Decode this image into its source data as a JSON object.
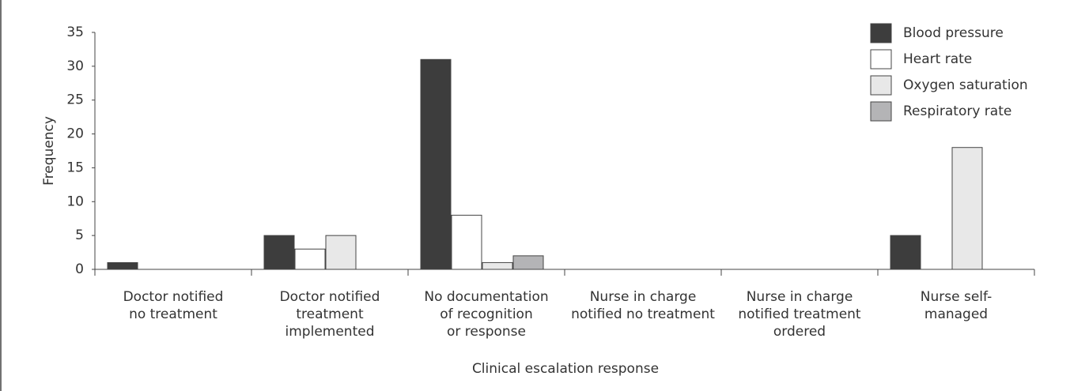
{
  "chart_data": {
    "type": "bar",
    "categories": [
      "Doctor notified\nno treatment",
      "Doctor notified\ntreatment\nimplemented",
      "No documentation\nof recognition\nor response",
      "Nurse in charge\nnotified no treatment",
      "Nurse in charge\nnotified treatment\nordered",
      "Nurse self-\nmanaged"
    ],
    "series": [
      {
        "name": "Blood pressure",
        "color": "#3d3d3d",
        "values": [
          1,
          5,
          31,
          0,
          0,
          5
        ]
      },
      {
        "name": "Heart rate",
        "color": "#ffffff",
        "values": [
          0,
          3,
          8,
          0,
          0,
          0
        ]
      },
      {
        "name": "Oxygen saturation",
        "color": "#e8e8e8",
        "values": [
          0,
          5,
          1,
          0,
          0,
          18
        ]
      },
      {
        "name": "Respiratory rate",
        "color": "#b4b4b6",
        "values": [
          0,
          0,
          2,
          0,
          0,
          0
        ]
      }
    ],
    "ylabel": "Frequency",
    "xlabel": "Clinical escalation response",
    "ylim": [
      0,
      35
    ],
    "yticks": [
      0,
      5,
      10,
      15,
      20,
      25,
      30,
      35
    ],
    "legend": "upper right",
    "grid": false
  }
}
